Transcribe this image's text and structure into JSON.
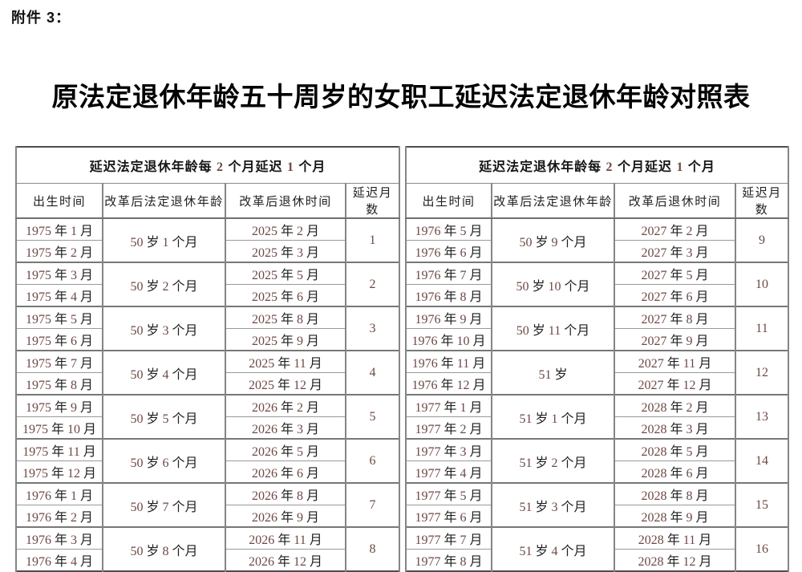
{
  "page": {
    "attachment_label": "附件 3：",
    "title": "原法定退休年龄五十周岁的女职工延迟法定退休年龄对照表",
    "background_color": "#ffffff",
    "text_color": "#1c1c1c",
    "digit_color": "#6d4944",
    "border_color": "#4d4d4d"
  },
  "tables": [
    {
      "group_header": "延迟法定退休年龄每 2 个月延迟 1 个月",
      "columns": [
        "出生时间",
        "改革后法定退休年龄",
        "改革后退休时间",
        "延迟月数"
      ],
      "groups": [
        {
          "birth1": "1975 年 1 月",
          "birth2": "1975 年 2 月",
          "age": "50 岁 1 个月",
          "retire1": "2025 年 2 月",
          "retire2": "2025 年 3 月",
          "delay": "1"
        },
        {
          "birth1": "1975 年 3 月",
          "birth2": "1975 年 4 月",
          "age": "50 岁 2 个月",
          "retire1": "2025 年 5 月",
          "retire2": "2025 年 6 月",
          "delay": "2"
        },
        {
          "birth1": "1975 年 5 月",
          "birth2": "1975 年 6 月",
          "age": "50 岁 3 个月",
          "retire1": "2025 年 8 月",
          "retire2": "2025 年 9 月",
          "delay": "3"
        },
        {
          "birth1": "1975 年 7 月",
          "birth2": "1975 年 8 月",
          "age": "50 岁 4 个月",
          "retire1": "2025 年 11 月",
          "retire2": "2025 年 12 月",
          "delay": "4"
        },
        {
          "birth1": "1975 年 9 月",
          "birth2": "1975 年 10 月",
          "age": "50 岁 5 个月",
          "retire1": "2026 年 2 月",
          "retire2": "2026 年 3 月",
          "delay": "5"
        },
        {
          "birth1": "1975 年 11 月",
          "birth2": "1975 年 12 月",
          "age": "50 岁 6 个月",
          "retire1": "2026 年 5 月",
          "retire2": "2026 年 6 月",
          "delay": "6"
        },
        {
          "birth1": "1976 年 1 月",
          "birth2": "1976 年 2 月",
          "age": "50 岁 7 个月",
          "retire1": "2026 年 8 月",
          "retire2": "2026 年 9 月",
          "delay": "7"
        },
        {
          "birth1": "1976 年 3 月",
          "birth2": "1976 年 4 月",
          "age": "50 岁 8 个月",
          "retire1": "2026 年 11 月",
          "retire2": "2026 年 12 月",
          "delay": "8"
        }
      ]
    },
    {
      "group_header": "延迟法定退休年龄每 2 个月延迟 1 个月",
      "columns": [
        "出生时间",
        "改革后法定退休年龄",
        "改革后退休时间",
        "延迟月数"
      ],
      "groups": [
        {
          "birth1": "1976 年 5 月",
          "birth2": "1976 年 6 月",
          "age": "50 岁 9 个月",
          "retire1": "2027 年 2 月",
          "retire2": "2027 年 3 月",
          "delay": "9"
        },
        {
          "birth1": "1976 年 7 月",
          "birth2": "1976 年 8 月",
          "age": "50 岁 10 个月",
          "retire1": "2027 年 5 月",
          "retire2": "2027 年 6 月",
          "delay": "10"
        },
        {
          "birth1": "1976 年 9 月",
          "birth2": "1976 年 10 月",
          "age": "50 岁 11 个月",
          "retire1": "2027 年 8 月",
          "retire2": "2027 年 9 月",
          "delay": "11"
        },
        {
          "birth1": "1976 年 11 月",
          "birth2": "1976 年 12 月",
          "age": "51 岁",
          "retire1": "2027 年 11 月",
          "retire2": "2027 年 12 月",
          "delay": "12"
        },
        {
          "birth1": "1977 年 1 月",
          "birth2": "1977 年 2 月",
          "age": "51 岁 1 个月",
          "retire1": "2028 年 2 月",
          "retire2": "2028 年 3 月",
          "delay": "13"
        },
        {
          "birth1": "1977 年 3 月",
          "birth2": "1977 年 4 月",
          "age": "51 岁 2 个月",
          "retire1": "2028 年 5 月",
          "retire2": "2028 年 6 月",
          "delay": "14"
        },
        {
          "birth1": "1977 年 5 月",
          "birth2": "1977 年 6 月",
          "age": "51 岁 3 个月",
          "retire1": "2028 年 8 月",
          "retire2": "2028 年 9 月",
          "delay": "15"
        },
        {
          "birth1": "1977 年 7 月",
          "birth2": "1977 年 8 月",
          "age": "51 岁 4 个月",
          "retire1": "2028 年 11 月",
          "retire2": "2028 年 12 月",
          "delay": "16"
        }
      ]
    }
  ]
}
